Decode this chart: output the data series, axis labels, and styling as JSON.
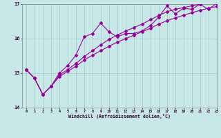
{
  "xlabel": "Windchill (Refroidissement éolien,°C)",
  "background_color": "#c8e8e8",
  "grid_color": "#aacccc",
  "line_color": "#990099",
  "x_data": [
    0,
    1,
    2,
    3,
    4,
    5,
    6,
    7,
    8,
    9,
    10,
    11,
    12,
    13,
    14,
    15,
    16,
    17,
    18,
    19,
    20,
    21,
    22,
    23
  ],
  "y_main": [
    15.1,
    14.85,
    14.38,
    14.62,
    15.0,
    15.22,
    15.52,
    16.05,
    16.15,
    16.45,
    16.2,
    16.05,
    16.15,
    16.15,
    16.22,
    16.38,
    16.62,
    16.95,
    16.72,
    16.88,
    16.85,
    17.0,
    16.85,
    17.02
  ],
  "y_low": [
    15.1,
    14.85,
    14.38,
    14.62,
    14.9,
    15.05,
    15.2,
    15.38,
    15.52,
    15.65,
    15.78,
    15.9,
    16.0,
    16.1,
    16.2,
    16.3,
    16.42,
    16.52,
    16.6,
    16.68,
    16.75,
    16.82,
    16.88,
    16.93
  ],
  "y_high": [
    15.1,
    14.85,
    14.38,
    14.62,
    14.95,
    15.1,
    15.28,
    15.48,
    15.65,
    15.82,
    15.98,
    16.1,
    16.22,
    16.32,
    16.42,
    16.55,
    16.67,
    16.78,
    16.85,
    16.9,
    16.95,
    17.0,
    17.05,
    17.1
  ],
  "ylim": [
    14.0,
    17.0
  ],
  "xlim": [
    -0.5,
    23
  ],
  "yticks": [
    14,
    15,
    16,
    17
  ],
  "xticks": [
    0,
    1,
    2,
    3,
    4,
    5,
    6,
    7,
    8,
    9,
    10,
    11,
    12,
    13,
    14,
    15,
    16,
    17,
    18,
    19,
    20,
    21,
    22,
    23
  ],
  "markersize": 2.0,
  "linewidth": 0.8
}
